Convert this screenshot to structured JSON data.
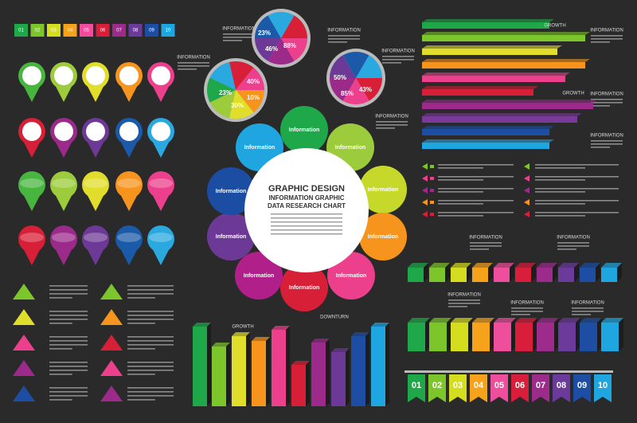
{
  "center": {
    "line1": "GRAPHIC DESIGN",
    "line2": "INFORMATION GRAPHIC",
    "line3": "DATA RESEARCH CHART"
  },
  "petals": [
    "Information",
    "Information",
    "Information",
    "Information",
    "Information",
    "Information",
    "Information",
    "Information",
    "Information",
    "Information"
  ],
  "pies": [
    {
      "labels": [
        "40%",
        "10%",
        "30%",
        "23%"
      ]
    },
    {
      "labels": [
        "23%",
        "46%",
        "88%"
      ]
    },
    {
      "labels": [
        "50%",
        "85%",
        "43%"
      ]
    }
  ],
  "info_labels": [
    "INFORMATION",
    "INFORMATION",
    "INFORMATION",
    "INFORMATION",
    "INFORMATION",
    "INFORMATION",
    "INFORMATION",
    "INFORMATION",
    "INFORMATION",
    "INFORMATION",
    "INFORMATION",
    "INFORMATION",
    "INFORMATION"
  ],
  "growth": [
    "GROWTH",
    "GROWTH",
    "GROWTH"
  ],
  "downturn": "DOWNTURN",
  "top_tabs": [
    "01",
    "02",
    "03",
    "04",
    "05",
    "06",
    "07",
    "08",
    "09",
    "10"
  ],
  "bottom_tabs": [
    "01",
    "02",
    "03",
    "04",
    "05",
    "06",
    "07",
    "08",
    "09",
    "10"
  ]
}
